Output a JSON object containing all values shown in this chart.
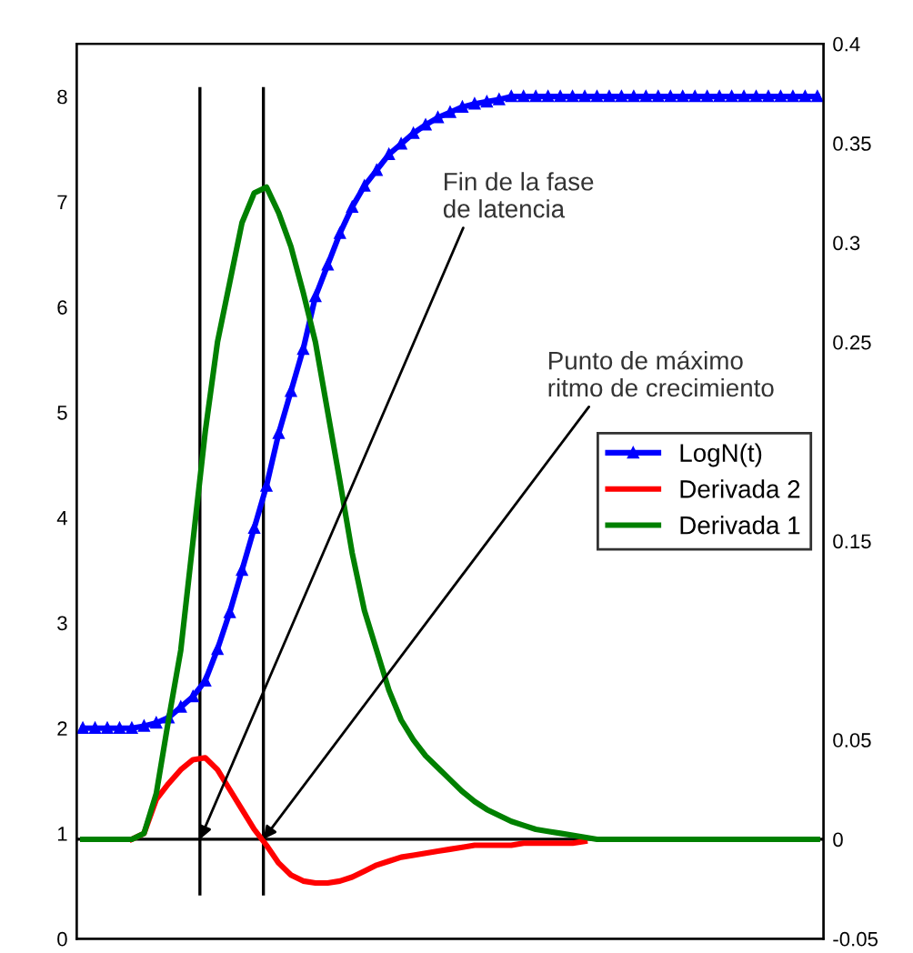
{
  "chart_data": {
    "type": "line",
    "categories": [
      null,
      null,
      null,
      null,
      null,
      null,
      null,
      null,
      null,
      null,
      null,
      null,
      null,
      null,
      null,
      null,
      null,
      null,
      null,
      null,
      null,
      null,
      null,
      null,
      null,
      null,
      null,
      null,
      null,
      null,
      null,
      null,
      null,
      null,
      null,
      null,
      null,
      null,
      null,
      null,
      null,
      null,
      null,
      null,
      null,
      null,
      null,
      null,
      null,
      null,
      null,
      null,
      null,
      null,
      null,
      null,
      null,
      null,
      null,
      null,
      null
    ],
    "series": [
      {
        "name": "LogN(t)",
        "color": "#0000ff",
        "marker": "triangle",
        "values": [
          2.0,
          2.0,
          2.0,
          2.0,
          2.0,
          2.02,
          2.05,
          2.1,
          2.2,
          2.3,
          2.45,
          2.75,
          3.1,
          3.5,
          3.9,
          4.3,
          4.8,
          5.2,
          5.6,
          6.1,
          6.4,
          6.7,
          6.95,
          7.15,
          7.3,
          7.45,
          7.55,
          7.65,
          7.73,
          7.8,
          7.85,
          7.9,
          7.93,
          7.95,
          7.97,
          8.0,
          8.0,
          8.0,
          8.0,
          8.0,
          8.0,
          8.0,
          8.0,
          8.0,
          8.0,
          8.0,
          8.0,
          8.0,
          8.0,
          8.0,
          8.0,
          8.0,
          8.0,
          8.0,
          8.0,
          8.0,
          8.0,
          8.0,
          8.0,
          8.0,
          8.0
        ]
      },
      {
        "name": "Derivada 2",
        "color": "#ff0000",
        "axis": "y2",
        "values": [
          null,
          null,
          null,
          null,
          0,
          0.003,
          0.02,
          0.028,
          0.035,
          0.04,
          0.041,
          0.035,
          0.025,
          0.015,
          0.005,
          -0.003,
          -0.012,
          -0.018,
          -0.021,
          -0.022,
          -0.022,
          -0.021,
          -0.019,
          -0.016,
          -0.013,
          -0.011,
          -0.009,
          -0.008,
          -0.007,
          -0.006,
          -0.005,
          -0.004,
          -0.003,
          -0.003,
          -0.003,
          -0.003,
          -0.002,
          -0.002,
          -0.002,
          -0.002,
          -0.002,
          -0.001,
          null,
          null,
          null,
          null,
          null,
          null,
          null,
          null,
          null,
          null,
          null,
          null,
          null,
          null,
          null,
          null,
          null,
          null,
          null
        ]
      },
      {
        "name": "Derivada 1",
        "color": "#008000",
        "axis": "y2",
        "values": [
          0,
          0,
          0,
          0,
          0,
          0.003,
          0.023,
          0.06,
          0.095,
          0.15,
          0.205,
          0.25,
          0.28,
          0.31,
          0.325,
          0.328,
          0.315,
          0.298,
          0.275,
          0.25,
          0.215,
          0.18,
          0.144,
          0.115,
          0.095,
          0.075,
          0.06,
          0.05,
          0.042,
          0.036,
          0.03,
          0.024,
          0.019,
          0.015,
          0.012,
          0.009,
          0.007,
          0.005,
          0.004,
          0.003,
          0.002,
          0.001,
          0,
          0,
          0,
          0,
          0,
          0,
          0,
          0,
          0,
          0,
          0,
          0,
          0,
          0,
          0,
          0,
          0,
          0,
          0
        ]
      }
    ],
    "ylim": [
      0,
      8.5
    ],
    "yticks": [
      0,
      1,
      2,
      3,
      4,
      5,
      6,
      7,
      8
    ],
    "y2lim": [
      -0.05,
      0.4
    ],
    "y2ticks": [
      -0.05,
      0,
      0.05,
      0.15,
      0.25,
      0.3,
      0.35,
      0.4
    ],
    "ref_lines": [
      {
        "axis": "y2",
        "value": 0,
        "color": "#000000"
      }
    ],
    "annotations": [
      "Fin de la fase\nde latencia",
      "Punto de máximo\nritmo de crecimiento"
    ],
    "legend": "center right",
    "grid": false,
    "line_style": "solid"
  }
}
